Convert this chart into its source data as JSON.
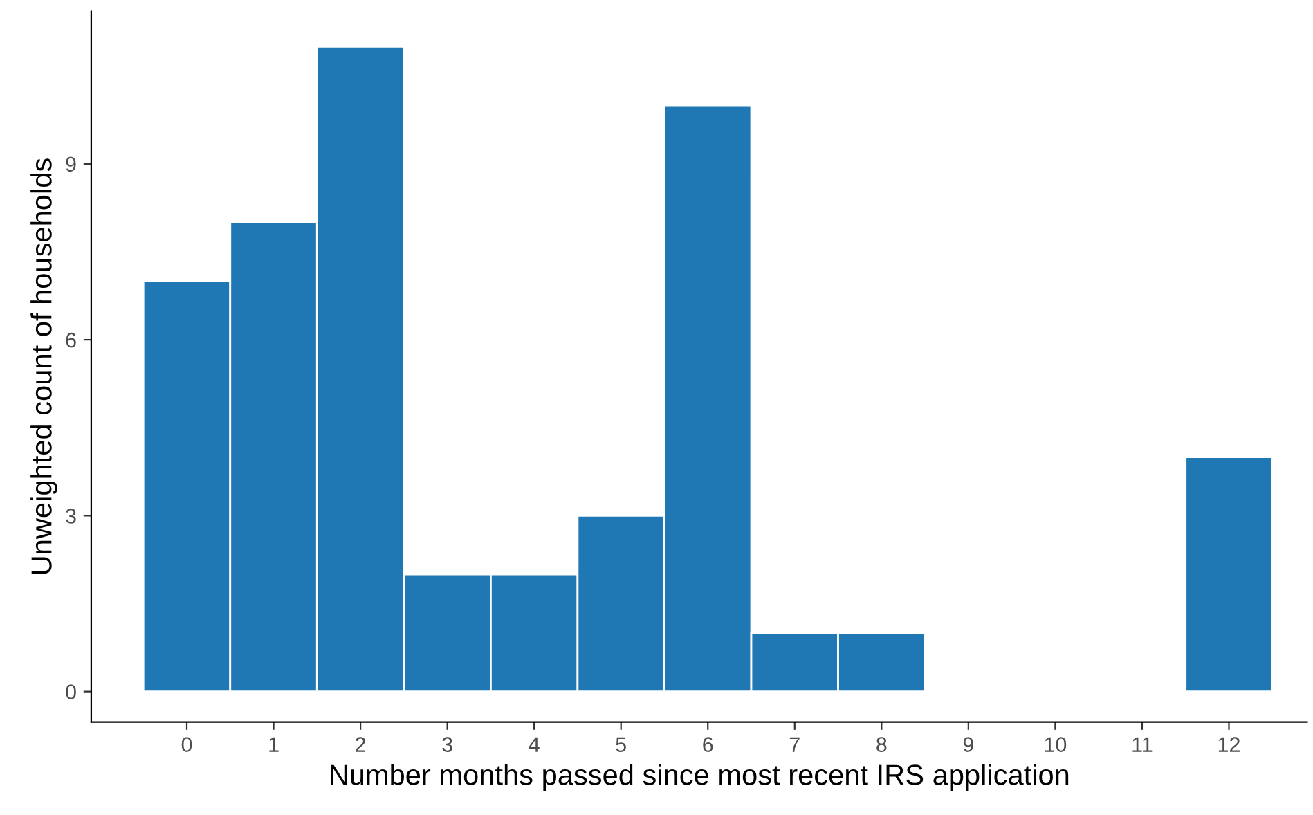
{
  "chart_data": {
    "type": "histogram",
    "xlabel": "Number months passed since most recent IRS application",
    "ylabel": "Unweighted count of households",
    "bins": [
      -0.5,
      0.5,
      1.5,
      2.5,
      3.5,
      4.5,
      5.5,
      6.5,
      7.5,
      8.5,
      9.5,
      10.5,
      11.5,
      12.5
    ],
    "values": [
      7,
      8,
      11,
      2,
      2,
      3,
      10,
      1,
      1,
      0,
      0,
      0,
      4
    ],
    "color": "#1f78b4",
    "xlim": [
      -1.1,
      12.9
    ],
    "xticks": [
      0,
      1,
      2,
      3,
      4,
      5,
      6,
      7,
      8,
      9,
      10,
      11,
      12
    ],
    "ylim": [
      -0.52,
      11.6
    ],
    "yticks": [
      0,
      3,
      6,
      9
    ],
    "grid": false
  }
}
